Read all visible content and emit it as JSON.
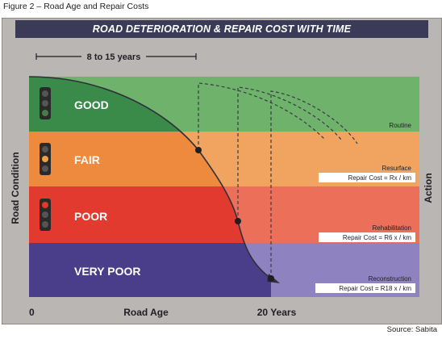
{
  "caption": "Figure 2 – Road Age and Repair Costs",
  "source": "Source: Sabita",
  "title": "ROAD DETERIORATION & REPAIR COST WITH TIME",
  "span_label": "8 to 15 years",
  "y_axis_label": "Road Condition",
  "right_axis_label": "Action",
  "x_axis": {
    "origin": "0",
    "label": "Road Age",
    "end": "20 Years"
  },
  "bands": [
    {
      "condition": "GOOD",
      "color": "#3a8a4a",
      "action_color": "#6fb26c",
      "action": "Routine",
      "cost": ""
    },
    {
      "condition": "FAIR",
      "color": "#ee8a3e",
      "action_color": "#f0a45f",
      "action": "Resurface",
      "cost": "Repair Cost = Rx / km"
    },
    {
      "condition": "POOR",
      "color": "#e23a2e",
      "action_color": "#ec6f5a",
      "action": "Rehabilitation",
      "cost": "Repair Cost = R6 x / km"
    },
    {
      "condition": "VERY POOR",
      "color": "#4a3e8a",
      "action_color": "#8e83c0",
      "action": "Reconstruction",
      "cost": "Repair Cost = R18 x / km"
    }
  ]
}
